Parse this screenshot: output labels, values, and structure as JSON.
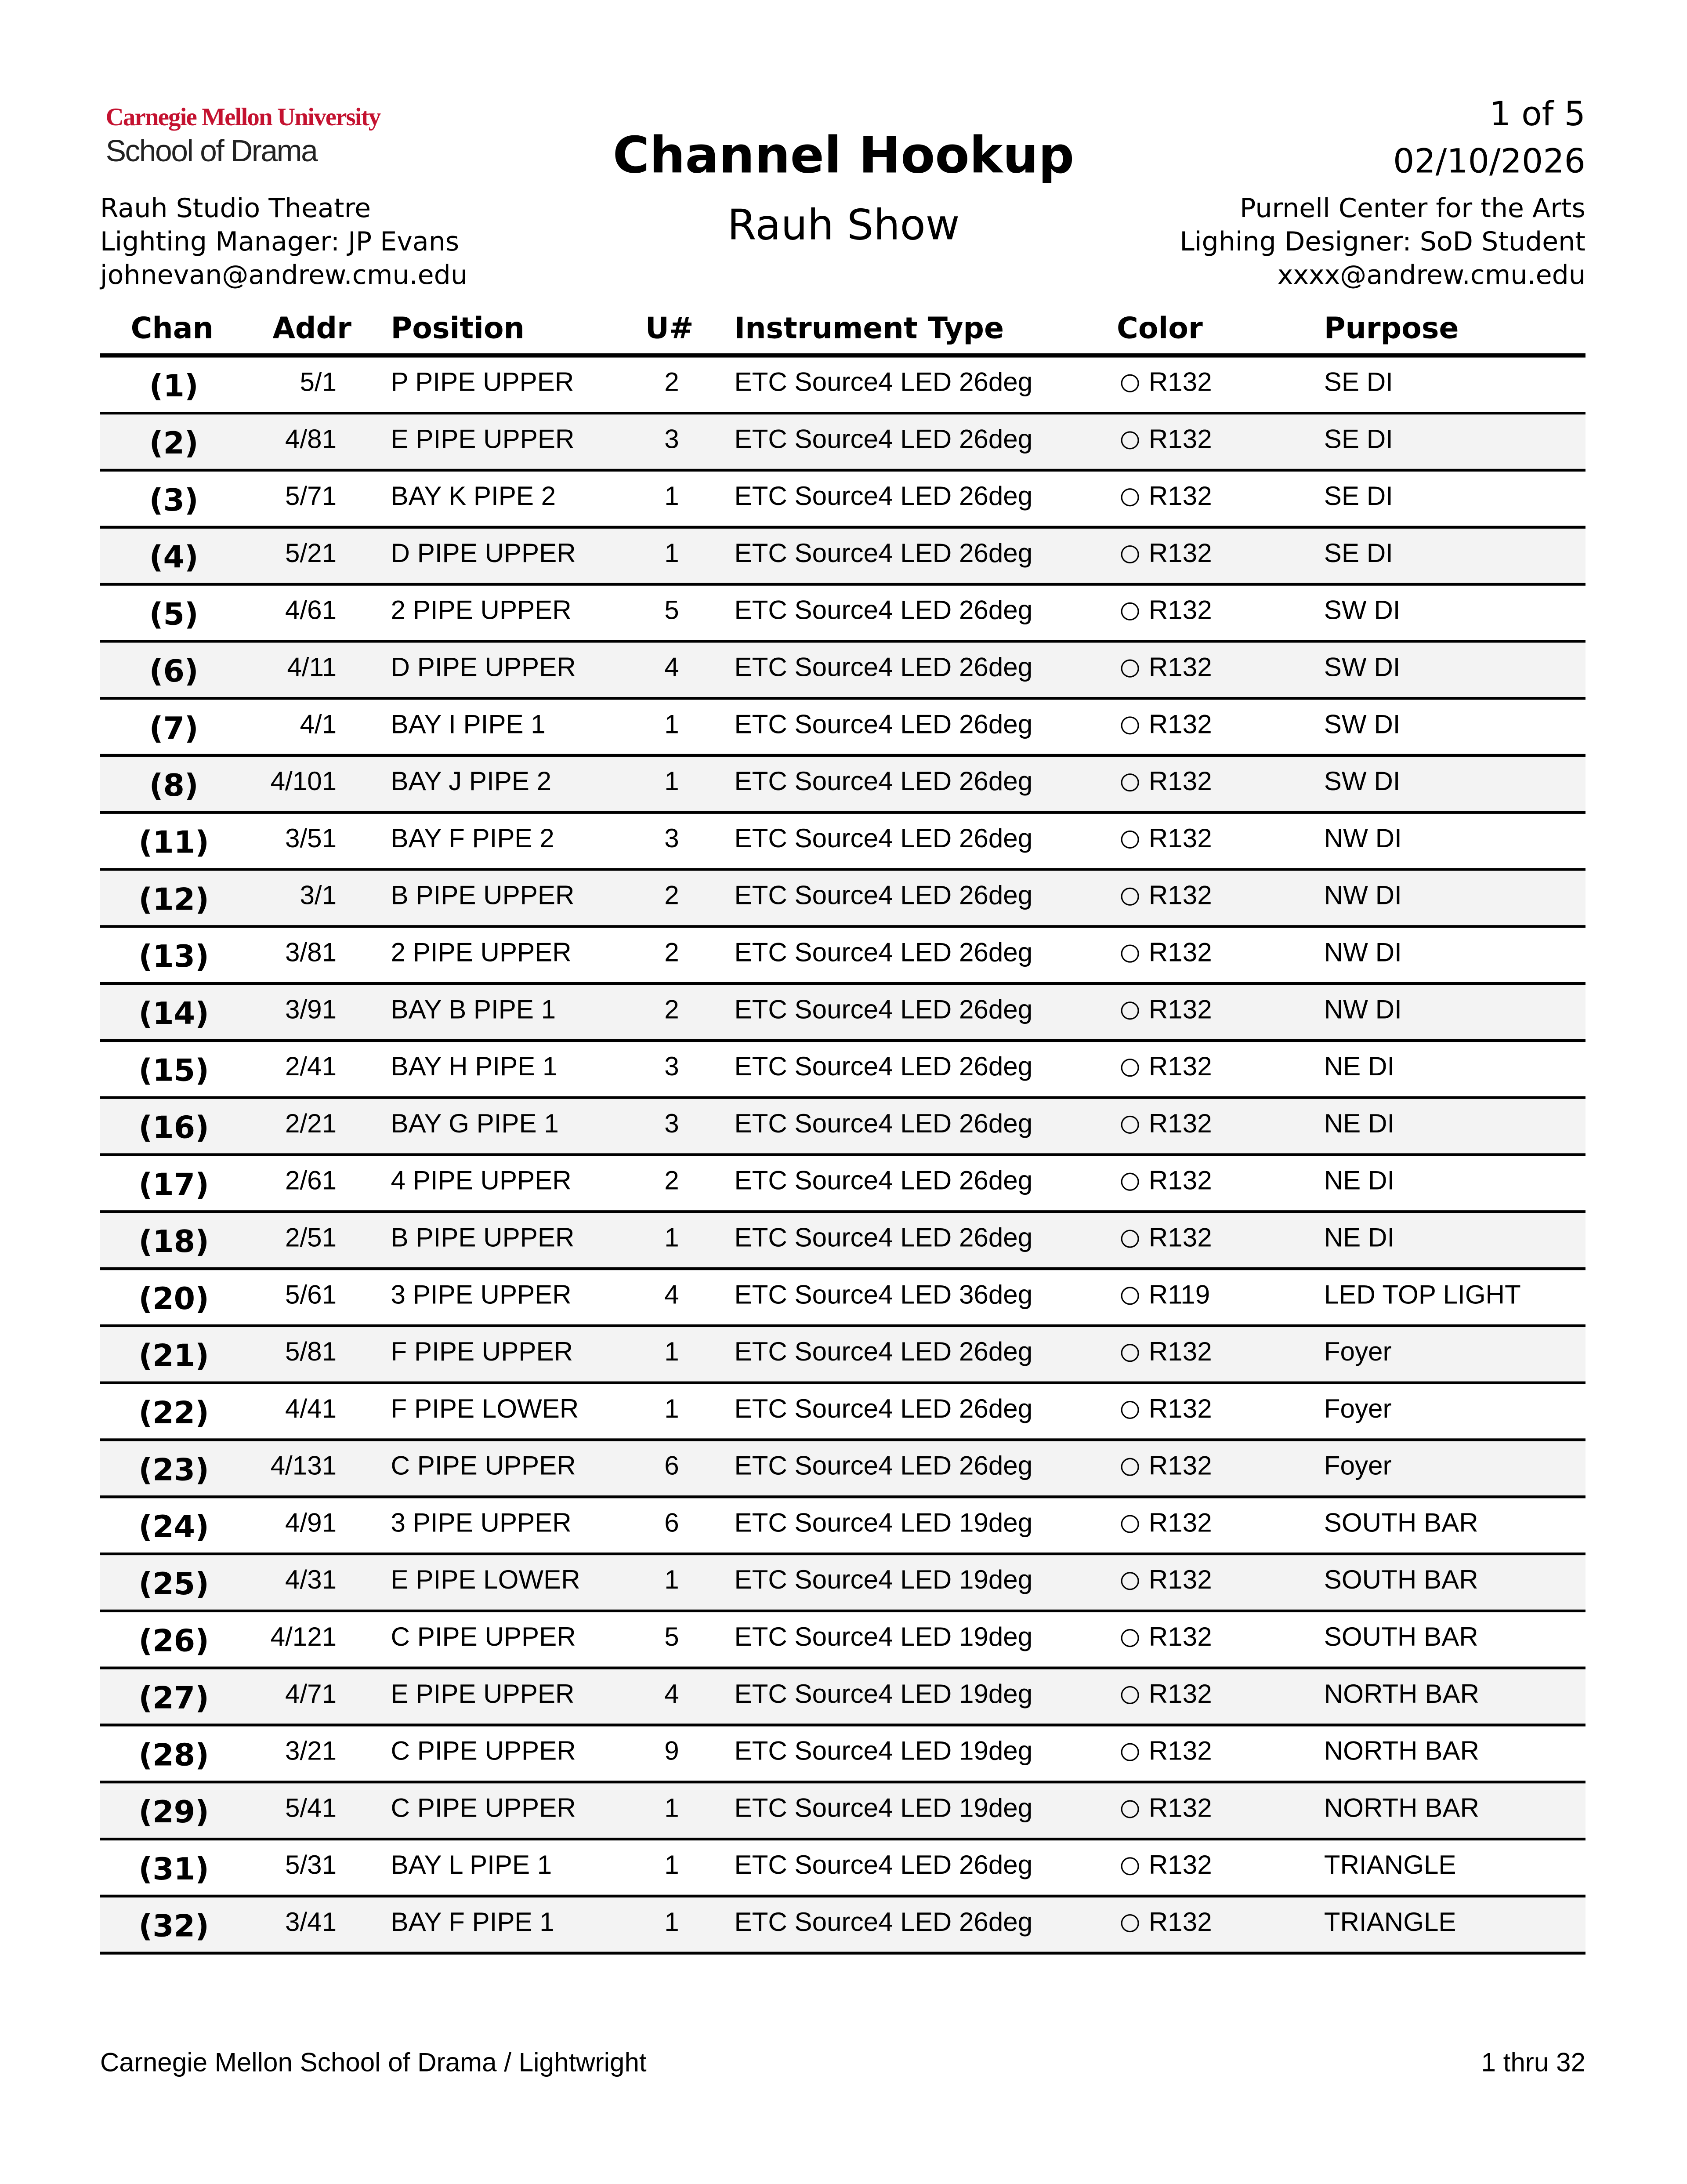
{
  "header": {
    "logo_line1": "Carnegie Mellon University",
    "logo_line2": "School of Drama",
    "title": "Channel Hookup",
    "subtitle": "Rauh Show",
    "page": "1 of 5",
    "date": "02/10/2026",
    "left": [
      "Rauh Studio Theatre",
      "Lighting Manager: JP Evans",
      "johnevan@andrew.cmu.edu"
    ],
    "right": [
      "Purnell Center for the Arts",
      "Lighing Designer: SoD Student",
      "xxxx@andrew.cmu.edu"
    ]
  },
  "columns": {
    "chan": "Chan",
    "addr": "Addr",
    "position": "Position",
    "unit": "U#",
    "instrument": "Instrument Type",
    "color": "Color",
    "purpose": "Purpose"
  },
  "rows": [
    [
      "(1)",
      "5/1",
      "P PIPE UPPER",
      "2",
      "ETC Source4 LED 26deg",
      "R132",
      "SE DI"
    ],
    [
      "(2)",
      "4/81",
      "E PIPE UPPER",
      "3",
      "ETC Source4 LED 26deg",
      "R132",
      "SE DI"
    ],
    [
      "(3)",
      "5/71",
      "BAY K PIPE 2",
      "1",
      "ETC Source4 LED 26deg",
      "R132",
      "SE DI"
    ],
    [
      "(4)",
      "5/21",
      "D PIPE UPPER",
      "1",
      "ETC Source4 LED 26deg",
      "R132",
      "SE DI"
    ],
    [
      "(5)",
      "4/61",
      "2 PIPE UPPER",
      "5",
      "ETC Source4 LED 26deg",
      "R132",
      "SW DI"
    ],
    [
      "(6)",
      "4/11",
      "D PIPE UPPER",
      "4",
      "ETC Source4 LED 26deg",
      "R132",
      "SW DI"
    ],
    [
      "(7)",
      "4/1",
      "BAY I PIPE 1",
      "1",
      "ETC Source4 LED 26deg",
      "R132",
      "SW DI"
    ],
    [
      "(8)",
      "4/101",
      "BAY J PIPE 2",
      "1",
      "ETC Source4 LED 26deg",
      "R132",
      "SW DI"
    ],
    [
      "(11)",
      "3/51",
      "BAY F PIPE 2",
      "3",
      "ETC Source4 LED 26deg",
      "R132",
      "NW DI"
    ],
    [
      "(12)",
      "3/1",
      "B PIPE UPPER",
      "2",
      "ETC Source4 LED 26deg",
      "R132",
      "NW DI"
    ],
    [
      "(13)",
      "3/81",
      "2 PIPE UPPER",
      "2",
      "ETC Source4 LED 26deg",
      "R132",
      "NW DI"
    ],
    [
      "(14)",
      "3/91",
      "BAY B PIPE 1",
      "2",
      "ETC Source4 LED 26deg",
      "R132",
      "NW DI"
    ],
    [
      "(15)",
      "2/41",
      "BAY H PIPE 1",
      "3",
      "ETC Source4 LED 26deg",
      "R132",
      "NE DI"
    ],
    [
      "(16)",
      "2/21",
      "BAY G PIPE 1",
      "3",
      "ETC Source4 LED 26deg",
      "R132",
      "NE DI"
    ],
    [
      "(17)",
      "2/61",
      "4 PIPE UPPER",
      "2",
      "ETC Source4 LED 26deg",
      "R132",
      "NE DI"
    ],
    [
      "(18)",
      "2/51",
      "B PIPE UPPER",
      "1",
      "ETC Source4 LED 26deg",
      "R132",
      "NE DI"
    ],
    [
      "(20)",
      "5/61",
      "3 PIPE UPPER",
      "4",
      "ETC Source4 LED 36deg",
      "R119",
      "LED TOP LIGHT"
    ],
    [
      "(21)",
      "5/81",
      "F PIPE UPPER",
      "1",
      "ETC Source4 LED 26deg",
      "R132",
      "Foyer"
    ],
    [
      "(22)",
      "4/41",
      "F PIPE LOWER",
      "1",
      "ETC Source4 LED 26deg",
      "R132",
      "Foyer"
    ],
    [
      "(23)",
      "4/131",
      "C PIPE UPPER",
      "6",
      "ETC Source4 LED 26deg",
      "R132",
      "Foyer"
    ],
    [
      "(24)",
      "4/91",
      "3 PIPE UPPER",
      "6",
      "ETC Source4 LED 19deg",
      "R132",
      "SOUTH BAR"
    ],
    [
      "(25)",
      "4/31",
      "E PIPE LOWER",
      "1",
      "ETC Source4 LED 19deg",
      "R132",
      "SOUTH BAR"
    ],
    [
      "(26)",
      "4/121",
      "C PIPE UPPER",
      "5",
      "ETC Source4 LED 19deg",
      "R132",
      "SOUTH BAR"
    ],
    [
      "(27)",
      "4/71",
      "E PIPE UPPER",
      "4",
      "ETC Source4 LED 19deg",
      "R132",
      "NORTH BAR"
    ],
    [
      "(28)",
      "3/21",
      "C PIPE UPPER",
      "9",
      "ETC Source4 LED 19deg",
      "R132",
      "NORTH BAR"
    ],
    [
      "(29)",
      "5/41",
      "C PIPE UPPER",
      "1",
      "ETC Source4 LED 19deg",
      "R132",
      "NORTH BAR"
    ],
    [
      "(31)",
      "5/31",
      "BAY L PIPE 1",
      "1",
      "ETC Source4 LED 26deg",
      "R132",
      "TRIANGLE"
    ],
    [
      "(32)",
      "3/41",
      "BAY F PIPE 1",
      "1",
      "ETC Source4 LED 26deg",
      "R132",
      "TRIANGLE"
    ]
  ],
  "footer": {
    "left": "Carnegie Mellon School of Drama / Lightwright",
    "right": "1 thru 32"
  },
  "colors": {
    "brand_red": "#c41230",
    "row_shade": "#f3f3f3"
  },
  "icons": {
    "color_swatch": "open-circle"
  }
}
